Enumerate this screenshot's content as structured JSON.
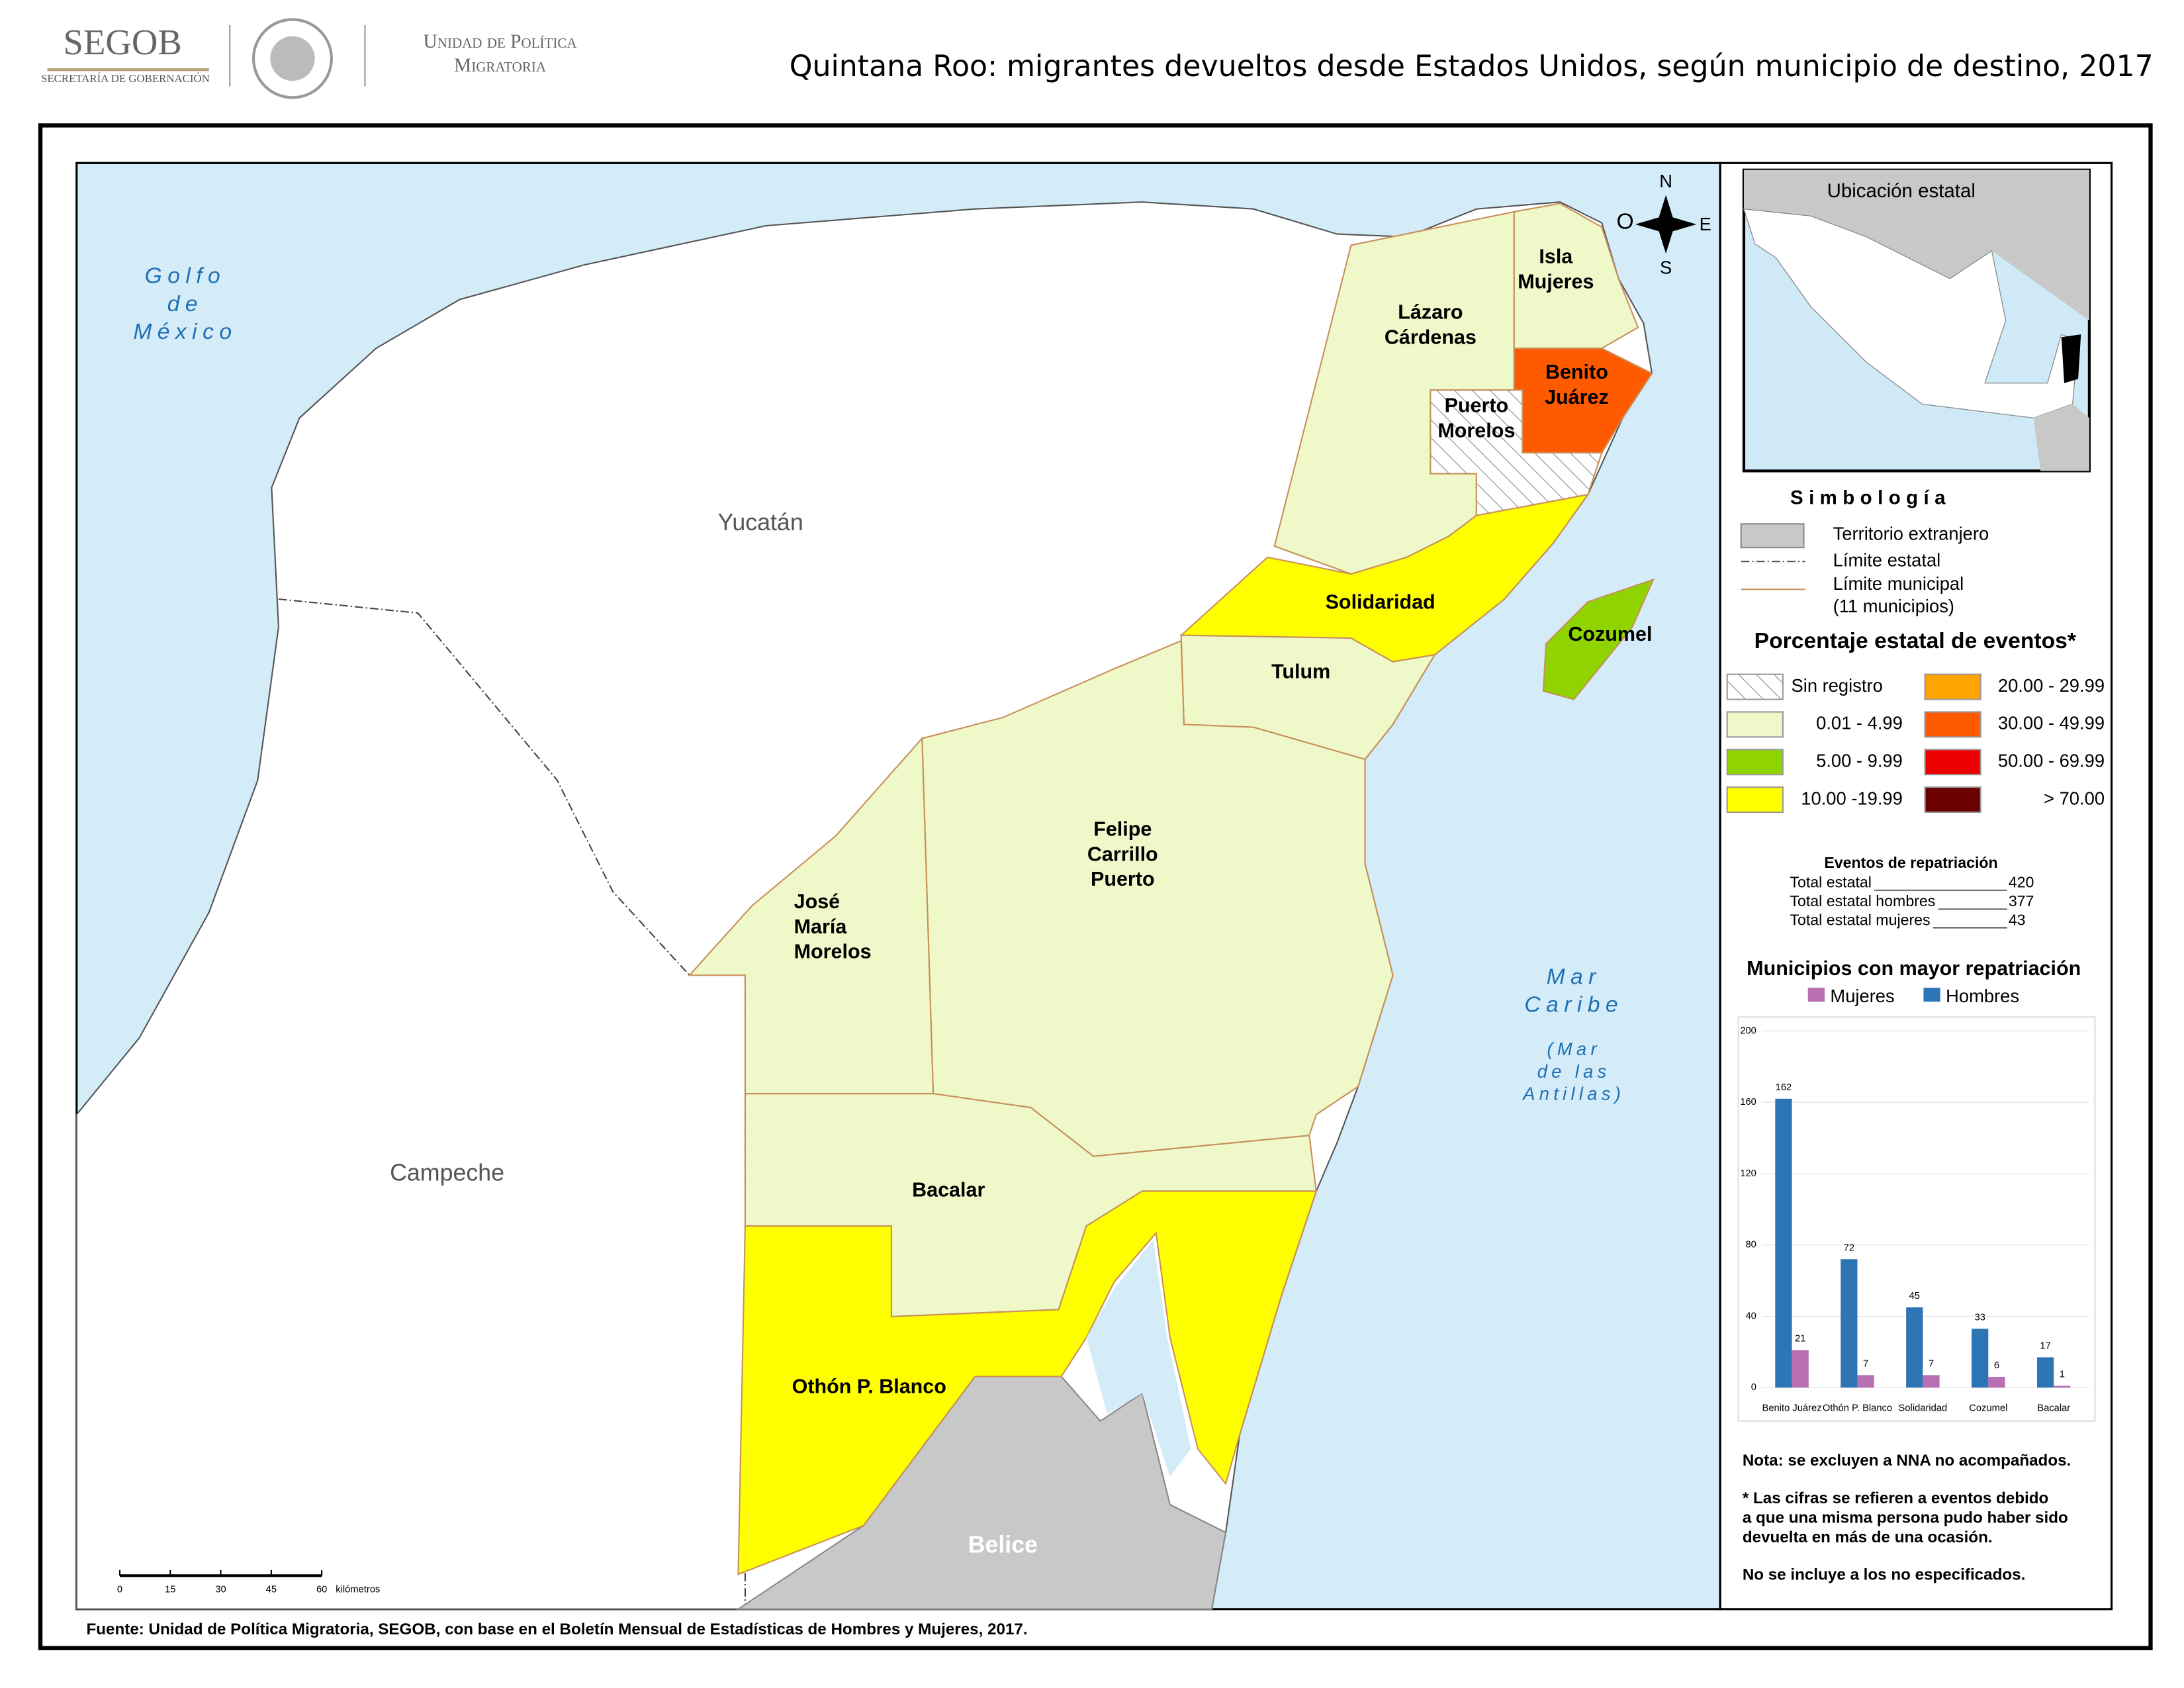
{
  "header": {
    "agency": "SEGOB",
    "agency_sub": "SECRETARÍA DE GOBERNACIÓN",
    "unit_line1": "Unidad de Política",
    "unit_line2": "Migratoria",
    "title": "Quintana Roo: migrantes devueltos desde Estados Unidos, según municipio de destino, 2017"
  },
  "map": {
    "water_labels": [
      {
        "lines": [
          "Golfo",
          "de",
          "México"
        ]
      },
      {
        "lines": [
          "Mar",
          "Caribe"
        ]
      },
      {
        "lines": [
          "(Mar",
          "de las",
          "Antillas)"
        ]
      }
    ],
    "state_labels": [
      "Yucatán",
      "Campeche",
      "Belice"
    ],
    "municipalities": [
      {
        "lines": [
          "Isla",
          "Mujeres"
        ],
        "color": "#eef8c8"
      },
      {
        "lines": [
          "Lázaro",
          "Cárdenas"
        ],
        "color": "#eef8c8"
      },
      {
        "lines": [
          "Benito",
          "Juárez"
        ],
        "color": "#ff5a00"
      },
      {
        "lines": [
          "Puerto",
          "Morelos"
        ],
        "color": "#ffffff",
        "hatched": true
      },
      {
        "lines": [
          "Solidaridad"
        ],
        "color": "#ffff00"
      },
      {
        "lines": [
          "Tulum"
        ],
        "color": "#eef8c8"
      },
      {
        "lines": [
          "Felipe",
          "Carrillo",
          "Puerto"
        ],
        "color": "#eef8c8"
      },
      {
        "lines": [
          "José",
          "María",
          "Morelos"
        ],
        "color": "#eef8c8"
      },
      {
        "lines": [
          "Bacalar"
        ],
        "color": "#eef8c8"
      },
      {
        "lines": [
          "Othón P. Blanco"
        ],
        "color": "#ffff00"
      },
      {
        "lines": [
          "Cozumel"
        ],
        "color": "#8fd400"
      }
    ],
    "compass": {
      "north": "N",
      "south": "S",
      "east": "E",
      "west": "O"
    },
    "scale_bar": {
      "ticks": [
        0,
        15,
        30,
        45,
        60
      ],
      "unit": "kilómetros"
    }
  },
  "inset": {
    "title": "Ubicación estatal"
  },
  "symbology": {
    "title": "Simbología",
    "items": [
      "Territorio extranjero",
      "Límite estatal",
      "Límite municipal",
      "(11 municipios)"
    ]
  },
  "percent_legend": {
    "title": "Porcentaje estatal de eventos*",
    "classes": [
      {
        "label": "Sin registro",
        "color": "#ffffff",
        "hatched": true
      },
      {
        "label": "0.01  - 4.99",
        "color": "#eef8c8"
      },
      {
        "label": "5.00  - 9.99",
        "color": "#8fd400"
      },
      {
        "label": "10.00 -19.99",
        "color": "#ffff00"
      },
      {
        "label": "20.00 - 29.99",
        "color": "#ffa500"
      },
      {
        "label": "30.00 - 49.99",
        "color": "#ff5a00"
      },
      {
        "label": "50.00 - 69.99",
        "color": "#ee0000"
      },
      {
        "label": "> 70.00",
        "color": "#6b0000"
      }
    ]
  },
  "totals": {
    "title": "Eventos de repatriación",
    "rows": [
      {
        "label": "Total estatal",
        "value": 420
      },
      {
        "label": "Total estatal hombres",
        "value": 377
      },
      {
        "label": "Total estatal mujeres",
        "value": 43
      }
    ]
  },
  "chart_data": {
    "type": "bar",
    "title": "Municipios con mayor repatriación",
    "categories": [
      "Benito Juárez",
      "Othón P. Blanco",
      "Solidaridad",
      "Cozumel",
      "Bacalar"
    ],
    "series": [
      {
        "name": "Mujeres",
        "color": "#b86fb4",
        "values": [
          21,
          7,
          7,
          6,
          1
        ]
      },
      {
        "name": "Hombres",
        "color": "#2e75b6",
        "values": [
          162,
          72,
          45,
          33,
          17
        ]
      }
    ],
    "ylim": [
      0,
      200
    ],
    "yticks": [
      0,
      40,
      80,
      120,
      160,
      200
    ],
    "grid": true
  },
  "notes": [
    "Nota: se excluyen a NNA no acompañados.",
    "* Las cifras se refieren a eventos debido",
    "a que una misma persona pudo haber sido",
    "devuelta en más de una ocasión.",
    "No se incluye a los no especificados."
  ],
  "source": "Fuente: Unidad de Política Migratoria, SEGOB, con base en el Boletín Mensual de Estadísticas de Hombres y Mujeres, 2017."
}
